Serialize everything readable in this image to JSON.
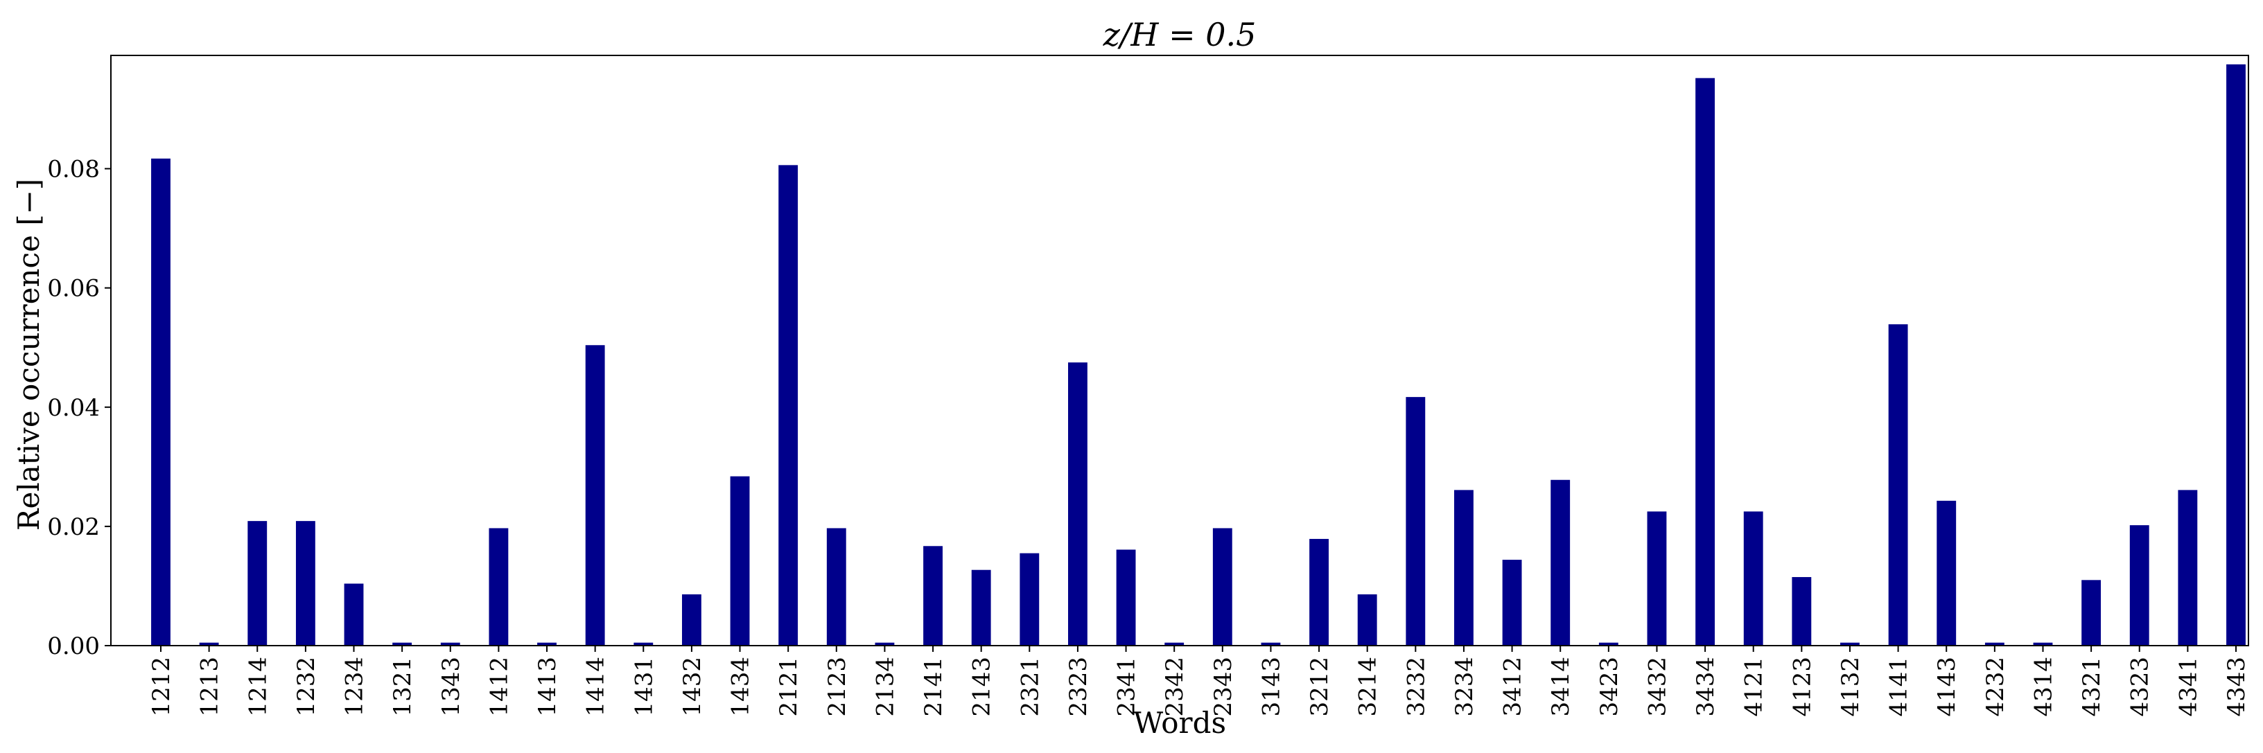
{
  "chart_data": {
    "type": "bar",
    "title": "z/H = 0.5",
    "xlabel": "Words",
    "ylabel": "Relative occurrence [−]",
    "ylim": [
      0,
      0.099
    ],
    "yticks": [
      "0.00",
      "0.02",
      "0.04",
      "0.06",
      "0.08"
    ],
    "grid": false,
    "bar_color": "#00008b",
    "categories": [
      "1212",
      "1213",
      "1214",
      "1232",
      "1234",
      "1321",
      "1343",
      "1412",
      "1413",
      "1414",
      "1431",
      "1432",
      "1434",
      "2121",
      "2123",
      "2134",
      "2141",
      "2143",
      "2321",
      "2323",
      "2341",
      "2342",
      "2343",
      "3143",
      "3212",
      "3214",
      "3232",
      "3234",
      "3412",
      "3414",
      "3423",
      "3432",
      "3434",
      "4121",
      "4123",
      "4132",
      "4141",
      "4143",
      "4232",
      "4314",
      "4321",
      "4323",
      "4341",
      "4343"
    ],
    "values": [
      0.0817,
      0.0005,
      0.0209,
      0.0209,
      0.0104,
      0.0005,
      0.0005,
      0.0197,
      0.0005,
      0.0504,
      0.0005,
      0.0086,
      0.0284,
      0.0806,
      0.0197,
      0.0005,
      0.0167,
      0.0127,
      0.0155,
      0.0475,
      0.0161,
      0.0005,
      0.0197,
      0.0005,
      0.0179,
      0.0086,
      0.0417,
      0.0261,
      0.0144,
      0.0278,
      0.0005,
      0.0225,
      0.0952,
      0.0225,
      0.0115,
      0.0005,
      0.0539,
      0.0243,
      0.0005,
      0.0005,
      0.011,
      0.0202,
      0.0261,
      0.0975
    ]
  }
}
